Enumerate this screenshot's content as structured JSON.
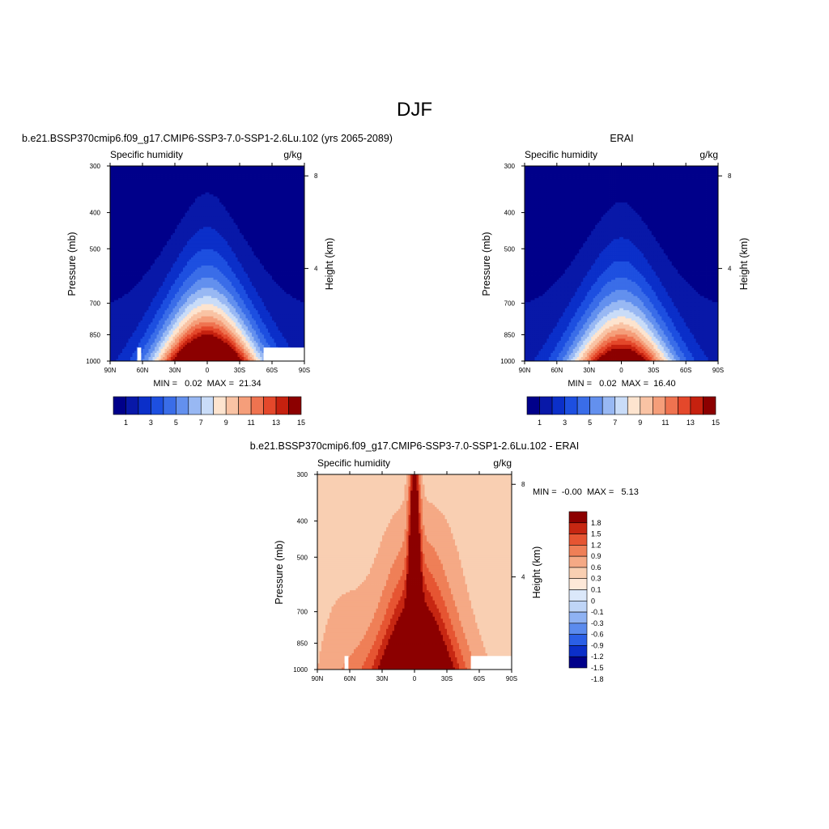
{
  "figure_title": "DJF",
  "colors": {
    "abs_levels": [
      "#00008a",
      "#0818a8",
      "#0b2fc9",
      "#1d4fe0",
      "#3a6de8",
      "#6390ee",
      "#98b8f3",
      "#c9dcf8",
      "#fde4cf",
      "#f9c3a4",
      "#f59e7a",
      "#ef7350",
      "#e4482b",
      "#c6210f",
      "#8c0000"
    ],
    "diff_levels": [
      "#00008a",
      "#0b2fc9",
      "#2b5fe6",
      "#5b8bee",
      "#8fb2f3",
      "#bfd5f7",
      "#dbe8fa",
      "#fde8d8",
      "#f9cfb2",
      "#f5a985",
      "#ef7f57",
      "#e65532",
      "#c72712",
      "#8c0000"
    ]
  },
  "panels": {
    "top_left": {
      "title": "b.e21.BSSP370cmip6.f09_g17.CMIP6-SSP3-7.0-SSP1-2.6Lu.102 (yrs 2065-2089)",
      "variable": "Specific humidity",
      "units": "g/kg",
      "ylabel": "Pressure (mb)",
      "ylabel_right": "Height (km)",
      "stats": "MIN =   0.02  MAX =  21.34"
    },
    "top_right": {
      "title": "ERAI",
      "variable": "Specific humidity",
      "units": "g/kg",
      "ylabel": "Pressure (mb)",
      "ylabel_right": "Height (km)",
      "stats": "MIN =   0.02  MAX =  16.40"
    },
    "bottom": {
      "title": "b.e21.BSSP370cmip6.f09_g17.CMIP6-SSP3-7.0-SSP1-2.6Lu.102 - ERAI",
      "variable": "Specific humidity",
      "units": "g/kg",
      "ylabel": "Pressure (mb)",
      "ylabel_right": "Height (km)",
      "stats": "MIN =  -0.00  MAX =   5.13"
    }
  },
  "chart_data": [
    {
      "type": "contour",
      "panel": "top_left",
      "x_ticks": [
        "90N",
        "60N",
        "30N",
        "0",
        "30S",
        "60S",
        "90S"
      ],
      "y_ticks": [
        "300",
        "400",
        "500",
        "700",
        "850",
        "1000"
      ],
      "y_right_ticks": [
        "8",
        "4"
      ],
      "ylim": [
        1000,
        300
      ],
      "levels": [
        1,
        2,
        3,
        4,
        5,
        6,
        7,
        8,
        9,
        10,
        11,
        12,
        13,
        14,
        15
      ],
      "peak_value": 21.34,
      "min": 0.02,
      "max": 21.34
    },
    {
      "type": "contour",
      "panel": "top_right",
      "x_ticks": [
        "90N",
        "60N",
        "30N",
        "0",
        "30S",
        "60S",
        "90S"
      ],
      "y_ticks": [
        "300",
        "400",
        "500",
        "700",
        "850",
        "1000"
      ],
      "y_right_ticks": [
        "8",
        "4"
      ],
      "ylim": [
        1000,
        300
      ],
      "levels": [
        1,
        2,
        3,
        4,
        5,
        6,
        7,
        8,
        9,
        10,
        11,
        12,
        13,
        14,
        15
      ],
      "peak_value": 16.4,
      "min": 0.02,
      "max": 16.4
    },
    {
      "type": "contour",
      "panel": "bottom",
      "x_ticks": [
        "90N",
        "60N",
        "30N",
        "0",
        "30S",
        "60S",
        "90S"
      ],
      "y_ticks": [
        "300",
        "400",
        "500",
        "700",
        "850",
        "1000"
      ],
      "y_right_ticks": [
        "8",
        "4"
      ],
      "ylim": [
        1000,
        300
      ],
      "levels": [
        -1.8,
        -1.5,
        -1.2,
        -0.9,
        -0.6,
        -0.3,
        -0.1,
        0.1,
        0.3,
        0.6,
        0.9,
        1.2,
        1.5,
        1.8
      ],
      "min": -0.0,
      "max": 5.13
    }
  ],
  "colorbars": {
    "abs": {
      "labels": [
        "1",
        "3",
        "5",
        "7",
        "9",
        "11",
        "13",
        "15"
      ]
    },
    "diff": {
      "labels": [
        "1.8",
        "1.5",
        "1.2",
        "0.9",
        "0.6",
        "0.3",
        "0.1",
        "0",
        "-0.1",
        "-0.3",
        "-0.6",
        "-0.9",
        "-1.2",
        "-1.5",
        "-1.8"
      ]
    }
  }
}
